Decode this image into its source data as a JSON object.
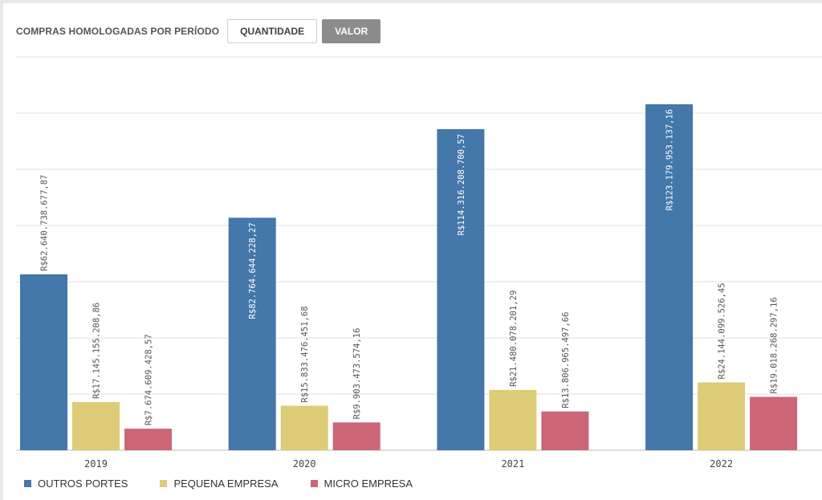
{
  "header": {
    "title": "COMPRAS HOMOLOGADAS POR PERÍODO",
    "buttons": [
      {
        "label": "QUANTIDADE",
        "active": false
      },
      {
        "label": "VALOR",
        "active": true
      }
    ]
  },
  "chart_data": {
    "type": "bar",
    "categories": [
      "2019",
      "2020",
      "2021",
      "2022"
    ],
    "series": [
      {
        "name": "OUTROS PORTES",
        "color": "#4477aa",
        "values": [
          62640738677.87,
          82764644228.27,
          114316208700.57,
          123179953137.16
        ],
        "labels": [
          "R$62.640.738.677,87",
          "R$82.764.644.228,27",
          "R$114.316.208.700,57",
          "R$123.179.953.137,16"
        ]
      },
      {
        "name": "PEQUENA EMPRESA",
        "color": "#ddcc77",
        "values": [
          17145155208.86,
          15833476451.68,
          21480078201.29,
          24144099526.45
        ],
        "labels": [
          "R$17.145.155.208,86",
          "R$15.833.476.451,68",
          "R$21.480.078.201,29",
          "R$24.144.099.526,45"
        ]
      },
      {
        "name": "MICRO EMPRESA",
        "color": "#cc6677",
        "values": [
          7674609428.57,
          9903473574.16,
          13806965497.66,
          19018268297.16
        ],
        "labels": [
          "R$7.674.609.428,57",
          "R$9.903.473.574,16",
          "R$13.806.965.497,66",
          "R$19.018.268.297,16"
        ]
      }
    ],
    "ylim": [
      0,
      140000000000
    ],
    "grid": true,
    "legend_position": "bottom-left"
  }
}
